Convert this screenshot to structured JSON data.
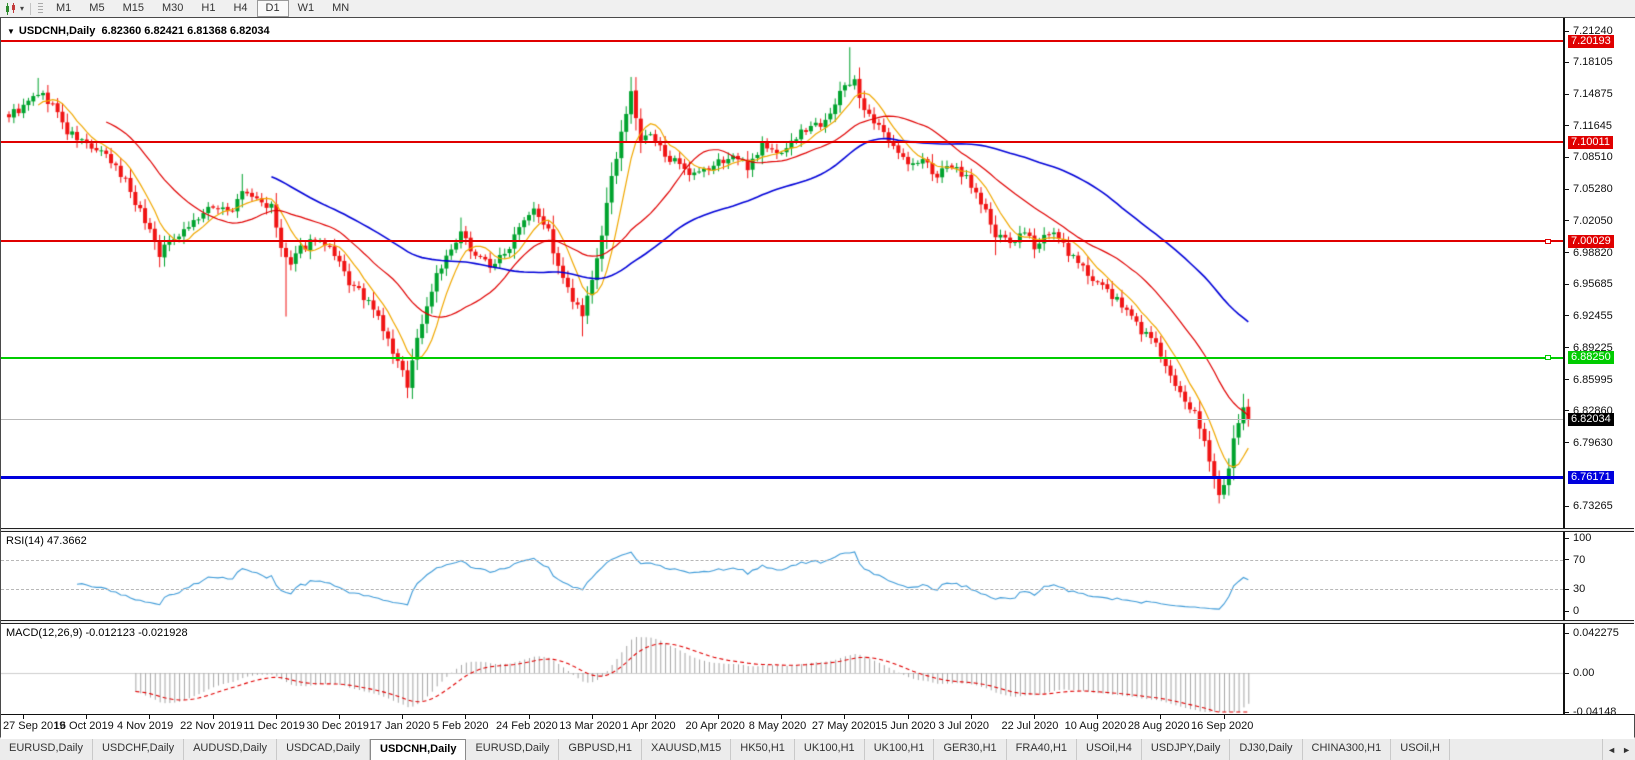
{
  "icons": {
    "dropdown": "▾",
    "title_marker": "▼",
    "scroll_left": "◄",
    "scroll_right": "►"
  },
  "toolbar": {
    "periods": [
      "M1",
      "M5",
      "M15",
      "M30",
      "H1",
      "H4",
      "D1",
      "W1",
      "MN"
    ],
    "active_period": "D1"
  },
  "chart": {
    "title_symbol": "USDCNH,Daily",
    "title_ohlc": "6.82360 6.82421 6.81368 6.82034",
    "price_axis_ticks": [
      "7.21240",
      "7.18105",
      "7.14875",
      "7.11645",
      "7.08510",
      "7.05280",
      "7.02050",
      "6.98820",
      "6.95685",
      "6.92455",
      "6.89225",
      "6.85995",
      "6.82860",
      "6.79630",
      "6.73265"
    ],
    "current_price": {
      "label": "6.82034",
      "value": 6.82034,
      "line_color": "#b9b9b9",
      "badge_bg": "#000000"
    }
  },
  "rsi": {
    "label": "RSI(14) 47.3662",
    "scale": [
      "100",
      "70",
      "30",
      "0"
    ],
    "levels": [
      70,
      30
    ],
    "line_color": "#3f9bd8"
  },
  "macd": {
    "label": "MACD(12,26,9) -0.012123 -0.021928",
    "scale": [
      "0.042275",
      "0.00",
      "-0.04148"
    ],
    "hist_color": "#a6a6a6",
    "signal_color": "#e00000"
  },
  "date_axis": {
    "labels": [
      "27 Sep 2019",
      "16 Oct 2019",
      "4 Nov 2019",
      "22 Nov 2019",
      "11 Dec 2019",
      "30 Dec 2019",
      "17 Jan 2020",
      "5 Feb 2020",
      "24 Feb 2020",
      "13 Mar 2020",
      "1 Apr 2020",
      "20 Apr 2020",
      "8 May 2020",
      "27 May 2020",
      "15 Jun 2020",
      "3 Jul 2020",
      "22 Jul 2020",
      "10 Aug 2020",
      "28 Aug 2020",
      "16 Sep 2020"
    ]
  },
  "tabs": {
    "items": [
      "EURUSD,Daily",
      "USDCHF,Daily",
      "AUDUSD,Daily",
      "USDCAD,Daily",
      "USDCNH,Daily",
      "EURUSD,Daily",
      "GBPUSD,H1",
      "XAUUSD,M15",
      "HK50,H1",
      "UK100,H1",
      "UK100,H1",
      "GER30,H1",
      "FRA40,H1",
      "USOil,H4",
      "USDJPY,Daily",
      "DJ30,Daily",
      "CHINA300,H1",
      "USOil,H"
    ],
    "active_index": 4
  },
  "chart_data": {
    "type": "candlestick",
    "symbol": "USDCNH",
    "timeframe": "Daily",
    "bar_count": 256,
    "x_range": [
      "27 Sep 2019",
      "16 Sep 2020"
    ],
    "y_range": [
      6.73265,
      7.2124
    ],
    "last_close": 6.82034,
    "up_color": "#00a32e",
    "down_color": "#f01414",
    "anchors": [
      [
        0,
        7.128
      ],
      [
        3,
        7.135
      ],
      [
        6,
        7.15
      ],
      [
        9,
        7.138
      ],
      [
        12,
        7.11
      ],
      [
        16,
        7.098
      ],
      [
        20,
        7.085
      ],
      [
        24,
        7.062
      ],
      [
        27,
        7.03
      ],
      [
        29,
        7.012
      ],
      [
        31,
        6.988
      ],
      [
        34,
        7.005
      ],
      [
        37,
        7.016
      ],
      [
        40,
        7.028
      ],
      [
        43,
        7.036
      ],
      [
        46,
        7.03
      ],
      [
        48,
        7.05
      ],
      [
        51,
        7.042
      ],
      [
        54,
        7.034
      ],
      [
        56,
        6.992
      ],
      [
        58,
        6.975
      ],
      [
        60,
        6.992
      ],
      [
        63,
        7.004
      ],
      [
        66,
        6.99
      ],
      [
        68,
        6.976
      ],
      [
        70,
        6.958
      ],
      [
        73,
        6.944
      ],
      [
        76,
        6.922
      ],
      [
        79,
        6.888
      ],
      [
        82,
        6.856
      ],
      [
        84,
        6.902
      ],
      [
        86,
        6.934
      ],
      [
        88,
        6.968
      ],
      [
        91,
        6.99
      ],
      [
        93,
        7.006
      ],
      [
        96,
        6.988
      ],
      [
        99,
        6.976
      ],
      [
        102,
        6.986
      ],
      [
        105,
        7.018
      ],
      [
        108,
        7.036
      ],
      [
        111,
        7.01
      ],
      [
        113,
        6.972
      ],
      [
        116,
        6.94
      ],
      [
        118,
        6.924
      ],
      [
        120,
        6.958
      ],
      [
        122,
        7.008
      ],
      [
        124,
        7.062
      ],
      [
        126,
        7.112
      ],
      [
        128,
        7.148
      ],
      [
        130,
        7.102
      ],
      [
        132,
        7.106
      ],
      [
        134,
        7.094
      ],
      [
        137,
        7.08
      ],
      [
        140,
        7.064
      ],
      [
        143,
        7.07
      ],
      [
        146,
        7.08
      ],
      [
        149,
        7.086
      ],
      [
        152,
        7.076
      ],
      [
        155,
        7.098
      ],
      [
        158,
        7.088
      ],
      [
        161,
        7.1
      ],
      [
        164,
        7.114
      ],
      [
        167,
        7.12
      ],
      [
        170,
        7.138
      ],
      [
        172,
        7.158
      ],
      [
        174,
        7.164
      ],
      [
        176,
        7.13
      ],
      [
        179,
        7.114
      ],
      [
        182,
        7.1
      ],
      [
        185,
        7.076
      ],
      [
        188,
        7.082
      ],
      [
        191,
        7.066
      ],
      [
        194,
        7.076
      ],
      [
        197,
        7.066
      ],
      [
        201,
        7.03
      ],
      [
        203,
        7.004
      ],
      [
        206,
        7.0
      ],
      [
        209,
        7.006
      ],
      [
        211,
        6.996
      ],
      [
        214,
        7.01
      ],
      [
        217,
        6.996
      ],
      [
        220,
        6.976
      ],
      [
        224,
        6.96
      ],
      [
        227,
        6.944
      ],
      [
        230,
        6.93
      ],
      [
        233,
        6.91
      ],
      [
        236,
        6.898
      ],
      [
        238,
        6.872
      ],
      [
        240,
        6.852
      ],
      [
        242,
        6.836
      ],
      [
        244,
        6.83
      ],
      [
        246,
        6.8
      ],
      [
        247,
        6.776
      ],
      [
        248,
        6.758
      ],
      [
        249,
        6.748
      ],
      [
        250,
        6.752
      ],
      [
        251,
        6.772
      ],
      [
        252,
        6.8
      ],
      [
        253,
        6.812
      ],
      [
        254,
        6.828
      ],
      [
        255,
        6.82034
      ]
    ],
    "spikes": [
      {
        "i": 6,
        "high": 7.165
      },
      {
        "i": 48,
        "high": 7.068
      },
      {
        "i": 57,
        "low": 6.924
      },
      {
        "i": 82,
        "low": 6.842
      },
      {
        "i": 93,
        "high": 7.024
      },
      {
        "i": 118,
        "low": 6.904
      },
      {
        "i": 128,
        "high": 7.166
      },
      {
        "i": 173,
        "high": 7.196
      },
      {
        "i": 203,
        "low": 6.986
      },
      {
        "i": 249,
        "low": 6.737
      },
      {
        "i": 250,
        "low": 6.741
      },
      {
        "i": 254,
        "high": 6.846
      }
    ],
    "moving_averages": [
      {
        "name": "fast",
        "period": 7,
        "color": "#f0a800"
      },
      {
        "name": "mid",
        "period": 21,
        "color": "#e00000"
      },
      {
        "name": "slow",
        "period": 55,
        "color": "#0000d8"
      }
    ],
    "levels": [
      {
        "label": "7.20193",
        "value": 7.20193,
        "color": "#e00000",
        "width": 2,
        "handle": false,
        "text": "#fff"
      },
      {
        "label": "7.10011",
        "value": 7.10011,
        "color": "#e00000",
        "width": 2,
        "handle": false,
        "text": "#fff"
      },
      {
        "label": "7.00029",
        "value": 7.00029,
        "color": "#e00000",
        "width": 2,
        "handle": true,
        "text": "#fff"
      },
      {
        "label": "6.88250",
        "value": 6.8825,
        "color": "#00cc00",
        "width": 2,
        "handle": true,
        "text": "#fff"
      },
      {
        "label": "6.76171",
        "value": 6.76171,
        "color": "#0000dd",
        "width": 3,
        "handle": false,
        "text": "#fff"
      }
    ]
  }
}
